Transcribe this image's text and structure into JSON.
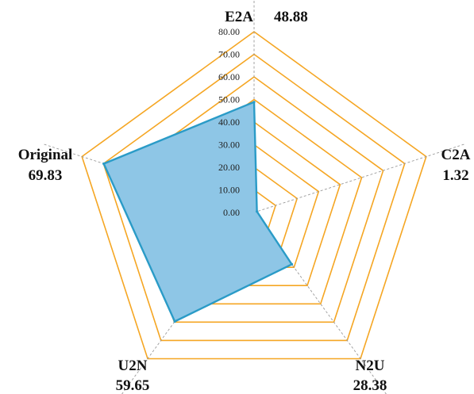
{
  "chart_data": {
    "type": "radar",
    "title": "",
    "categories": [
      "E2A",
      "C2A",
      "N2U",
      "U2N",
      "Original"
    ],
    "series": [
      {
        "values": [
          48.88,
          1.32,
          28.38,
          59.65,
          69.83
        ]
      }
    ],
    "value_labels": [
      "48.88",
      "1.32",
      "28.38",
      "59.65",
      "69.83"
    ],
    "rlim": [
      0,
      80
    ],
    "ticks": [
      "0.00",
      "10.00",
      "20.00",
      "30.00",
      "40.00",
      "50.00",
      "60.00",
      "70.00",
      "80.00"
    ],
    "grid": true,
    "legend": false,
    "colors": {
      "grid": "#F5A623",
      "fill": "#8EC6E6",
      "stroke": "#2A9BC7",
      "spoke": "#9a9a9a"
    }
  }
}
